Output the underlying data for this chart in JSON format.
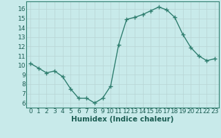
{
  "x": [
    0,
    1,
    2,
    3,
    4,
    5,
    6,
    7,
    8,
    9,
    10,
    11,
    12,
    13,
    14,
    15,
    16,
    17,
    18,
    19,
    20,
    21,
    22,
    23
  ],
  "y": [
    10.2,
    9.7,
    9.2,
    9.4,
    8.8,
    7.5,
    6.5,
    6.5,
    6.0,
    6.5,
    7.8,
    12.2,
    14.9,
    15.1,
    15.4,
    15.8,
    16.2,
    15.9,
    15.1,
    13.3,
    11.9,
    11.0,
    10.5,
    10.7
  ],
  "xlim": [
    -0.5,
    23.5
  ],
  "ylim": [
    5.5,
    16.8
  ],
  "xticks": [
    0,
    1,
    2,
    3,
    4,
    5,
    6,
    7,
    8,
    9,
    10,
    11,
    12,
    13,
    14,
    15,
    16,
    17,
    18,
    19,
    20,
    21,
    22,
    23
  ],
  "yticks": [
    6,
    7,
    8,
    9,
    10,
    11,
    12,
    13,
    14,
    15,
    16
  ],
  "xlabel": "Humidex (Indice chaleur)",
  "line_color": "#2e7d6e",
  "marker": "+",
  "bg_color": "#c8eaea",
  "grid_color": "#b8d4d4",
  "tick_fontsize": 6.5,
  "xlabel_fontsize": 7.5,
  "line_width": 1.0,
  "marker_size": 4,
  "marker_edge_width": 1.0
}
